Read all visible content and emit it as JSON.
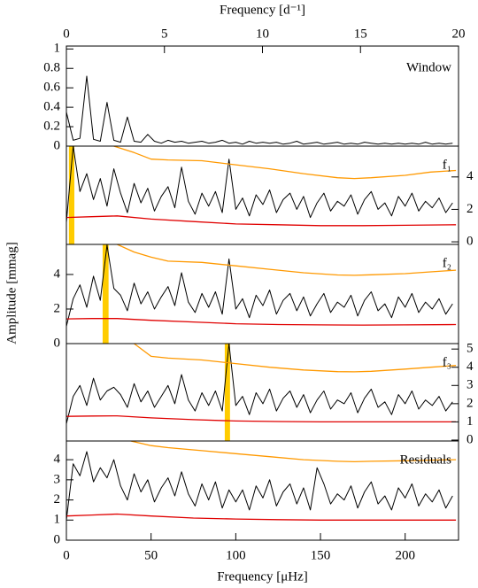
{
  "chart_data": [
    {
      "type": "line",
      "label": "Window",
      "x2label": "Frequency [d⁻¹]",
      "x2lim": [
        0,
        20
      ],
      "x2ticks": [
        0,
        5,
        10,
        15,
        20
      ],
      "xlim": [
        0,
        231.5
      ],
      "ylim": [
        0,
        1.03
      ],
      "yticks": [
        0,
        0.2,
        0.4,
        0.6,
        0.8,
        1
      ],
      "ytick_side": "left",
      "series": [
        {
          "color": "#000000",
          "x": [
            0,
            4,
            8,
            12,
            16,
            20,
            24,
            28,
            32,
            36,
            40,
            44,
            48,
            52,
            56,
            60,
            64,
            68,
            72,
            76,
            80,
            84,
            88,
            92,
            96,
            100,
            104,
            108,
            112,
            116,
            120,
            124,
            128,
            132,
            136,
            140,
            144,
            148,
            152,
            156,
            160,
            164,
            168,
            172,
            176,
            180,
            184,
            188,
            192,
            196,
            200,
            204,
            208,
            212,
            216,
            220,
            224,
            228
          ],
          "values": [
            0.35,
            0.06,
            0.08,
            0.72,
            0.07,
            0.05,
            0.45,
            0.06,
            0.04,
            0.3,
            0.05,
            0.04,
            0.12,
            0.05,
            0.03,
            0.06,
            0.04,
            0.05,
            0.03,
            0.04,
            0.05,
            0.03,
            0.04,
            0.06,
            0.03,
            0.04,
            0.02,
            0.05,
            0.03,
            0.04,
            0.03,
            0.04,
            0.02,
            0.03,
            0.05,
            0.02,
            0.03,
            0.04,
            0.02,
            0.03,
            0.04,
            0.02,
            0.03,
            0.02,
            0.04,
            0.03,
            0.02,
            0.03,
            0.02,
            0.03,
            0.02,
            0.03,
            0.02,
            0.04,
            0.02,
            0.03,
            0.02,
            0.03
          ]
        }
      ]
    },
    {
      "type": "line",
      "label": "f₁",
      "xlim": [
        0,
        231.5
      ],
      "ylim": [
        -0.16,
        5.9
      ],
      "yticks": [
        0,
        2,
        4
      ],
      "ytick_side": "right",
      "highlight": [
        1.5,
        4.7
      ],
      "highlight_color": "#ffcc00",
      "series": [
        {
          "color": "#000000",
          "x": [
            0,
            4,
            8,
            12,
            16,
            20,
            24,
            28,
            32,
            36,
            40,
            44,
            48,
            52,
            56,
            60,
            64,
            68,
            72,
            76,
            80,
            84,
            88,
            92,
            96,
            100,
            104,
            108,
            112,
            116,
            120,
            124,
            128,
            132,
            136,
            140,
            144,
            148,
            152,
            156,
            160,
            164,
            168,
            172,
            176,
            180,
            184,
            188,
            192,
            196,
            200,
            204,
            208,
            212,
            216,
            220,
            224,
            228
          ],
          "values": [
            1.2,
            5.9,
            3.1,
            4.2,
            2.6,
            3.9,
            2.2,
            4.5,
            3.0,
            1.8,
            3.6,
            2.4,
            3.3,
            1.9,
            2.8,
            3.4,
            2.1,
            4.6,
            2.5,
            1.7,
            3.0,
            2.2,
            3.1,
            1.8,
            5.1,
            2.0,
            2.7,
            1.6,
            2.9,
            2.3,
            3.2,
            1.8,
            2.6,
            3.0,
            2.0,
            2.8,
            1.5,
            2.4,
            3.0,
            1.9,
            2.5,
            2.2,
            2.9,
            1.7,
            2.6,
            3.1,
            2.0,
            2.4,
            1.6,
            2.8,
            2.2,
            3.0,
            1.9,
            2.5,
            2.1,
            2.7,
            1.8,
            2.4
          ]
        },
        {
          "color": "#ff9900",
          "x": [
            28,
            40,
            50,
            60,
            80,
            100,
            120,
            140,
            160,
            170,
            180,
            200,
            215,
            230
          ],
          "values": [
            5.9,
            5.5,
            5.1,
            5.05,
            5.0,
            4.75,
            4.5,
            4.2,
            3.95,
            3.9,
            3.95,
            4.1,
            4.3,
            4.4
          ]
        },
        {
          "color": "#e00000",
          "x": [
            0,
            15,
            30,
            50,
            75,
            100,
            125,
            150,
            175,
            200,
            230
          ],
          "values": [
            1.5,
            1.55,
            1.6,
            1.4,
            1.25,
            1.1,
            1.05,
            1.0,
            1.0,
            1.02,
            1.05
          ]
        }
      ]
    },
    {
      "type": "line",
      "label": "f₂",
      "xlim": [
        0,
        231.5
      ],
      "ylim": [
        0,
        5.74
      ],
      "yticks": [
        0,
        2,
        4
      ],
      "ytick_side": "left",
      "highlight": [
        21.4,
        24.9
      ],
      "highlight_color": "#ffcc00",
      "ylabel": "Amplitude [mmag]",
      "series": [
        {
          "color": "#000000",
          "x": [
            0,
            4,
            8,
            12,
            16,
            20,
            24,
            28,
            32,
            36,
            40,
            44,
            48,
            52,
            56,
            60,
            64,
            68,
            72,
            76,
            80,
            84,
            88,
            92,
            96,
            100,
            104,
            108,
            112,
            116,
            120,
            124,
            128,
            132,
            136,
            140,
            144,
            148,
            152,
            156,
            160,
            164,
            168,
            172,
            176,
            180,
            184,
            188,
            192,
            196,
            200,
            204,
            208,
            212,
            216,
            220,
            224,
            228
          ],
          "values": [
            1.0,
            2.6,
            3.4,
            2.1,
            3.9,
            2.5,
            5.7,
            3.2,
            2.8,
            1.9,
            3.5,
            2.3,
            3.0,
            2.0,
            2.7,
            3.3,
            2.2,
            4.1,
            2.4,
            1.8,
            2.9,
            2.1,
            3.0,
            1.7,
            4.9,
            2.0,
            2.6,
            1.5,
            2.8,
            2.2,
            3.1,
            1.7,
            2.5,
            2.9,
            1.9,
            2.7,
            1.6,
            2.3,
            2.9,
            1.8,
            2.4,
            2.1,
            2.8,
            1.6,
            2.5,
            3.0,
            1.9,
            2.3,
            1.5,
            2.7,
            2.1,
            2.9,
            1.8,
            2.4,
            2.0,
            2.6,
            1.7,
            2.3
          ]
        },
        {
          "color": "#ff9900",
          "x": [
            30,
            40,
            50,
            60,
            80,
            100,
            120,
            140,
            160,
            170,
            180,
            200,
            215,
            230
          ],
          "values": [
            5.74,
            5.3,
            5.0,
            4.77,
            4.7,
            4.5,
            4.3,
            4.1,
            3.97,
            3.95,
            3.98,
            4.05,
            4.15,
            4.25
          ]
        },
        {
          "color": "#e00000",
          "x": [
            0,
            15,
            30,
            50,
            75,
            100,
            125,
            150,
            175,
            200,
            230
          ],
          "values": [
            1.43,
            1.45,
            1.45,
            1.35,
            1.25,
            1.15,
            1.1,
            1.08,
            1.07,
            1.08,
            1.1
          ]
        }
      ]
    },
    {
      "type": "line",
      "label": "f₃",
      "xlim": [
        0,
        231.5
      ],
      "ylim": [
        -0.05,
        5.3
      ],
      "yticks": [
        0,
        1,
        2,
        3,
        4,
        5
      ],
      "ytick_side": "right",
      "highlight": [
        93.5,
        96.6
      ],
      "highlight_color": "#ffcc00",
      "series": [
        {
          "color": "#000000",
          "x": [
            0,
            4,
            8,
            12,
            16,
            20,
            24,
            28,
            32,
            36,
            40,
            44,
            48,
            52,
            56,
            60,
            64,
            68,
            72,
            76,
            80,
            84,
            88,
            92,
            96,
            100,
            104,
            108,
            112,
            116,
            120,
            124,
            128,
            132,
            136,
            140,
            144,
            148,
            152,
            156,
            160,
            164,
            168,
            172,
            176,
            180,
            184,
            188,
            192,
            196,
            200,
            204,
            208,
            212,
            216,
            220,
            224,
            228
          ],
          "values": [
            0.9,
            2.4,
            3.0,
            1.9,
            3.4,
            2.2,
            2.7,
            2.9,
            2.5,
            1.8,
            3.1,
            2.1,
            2.7,
            1.8,
            2.4,
            3.0,
            2.0,
            3.6,
            2.2,
            1.6,
            2.6,
            1.9,
            2.7,
            1.6,
            5.3,
            1.9,
            2.4,
            1.4,
            2.6,
            2.0,
            2.8,
            1.6,
            2.3,
            2.7,
            1.8,
            2.5,
            1.5,
            2.2,
            2.7,
            1.7,
            2.2,
            2.0,
            2.6,
            1.5,
            2.3,
            2.8,
            1.8,
            2.1,
            1.4,
            2.5,
            2.0,
            2.7,
            1.7,
            2.2,
            1.9,
            2.4,
            1.6,
            2.1
          ]
        },
        {
          "color": "#ff9900",
          "x": [
            40,
            50,
            60,
            80,
            100,
            120,
            140,
            160,
            170,
            180,
            200,
            215,
            230
          ],
          "values": [
            5.3,
            4.6,
            4.5,
            4.4,
            4.2,
            4.0,
            3.85,
            3.76,
            3.75,
            3.78,
            3.9,
            4.0,
            4.1
          ]
        },
        {
          "color": "#e00000",
          "x": [
            0,
            15,
            30,
            50,
            75,
            100,
            125,
            150,
            175,
            200,
            230
          ],
          "values": [
            1.3,
            1.32,
            1.33,
            1.22,
            1.12,
            1.05,
            1.02,
            1.0,
            1.0,
            1.0,
            1.0
          ]
        }
      ]
    },
    {
      "type": "line",
      "label": "Residuals",
      "xlabel": "Frequency [μHz]",
      "xlim": [
        0,
        231.5
      ],
      "xticks": [
        0,
        50,
        100,
        150,
        200
      ],
      "ylim": [
        0,
        4.93
      ],
      "yticks": [
        0,
        1,
        2,
        3,
        4
      ],
      "ytick_side": "left",
      "series": [
        {
          "color": "#000000",
          "x": [
            0,
            4,
            8,
            12,
            16,
            20,
            24,
            28,
            32,
            36,
            40,
            44,
            48,
            52,
            56,
            60,
            64,
            68,
            72,
            76,
            80,
            84,
            88,
            92,
            96,
            100,
            104,
            108,
            112,
            116,
            120,
            124,
            128,
            132,
            136,
            140,
            144,
            148,
            152,
            156,
            160,
            164,
            168,
            172,
            176,
            180,
            184,
            188,
            192,
            196,
            200,
            204,
            208,
            212,
            216,
            220,
            224,
            228
          ],
          "values": [
            1.0,
            3.8,
            3.2,
            4.4,
            2.9,
            3.6,
            3.1,
            4.0,
            2.7,
            2.0,
            3.3,
            2.4,
            3.0,
            1.9,
            2.6,
            3.1,
            2.2,
            3.4,
            2.3,
            1.7,
            2.8,
            2.0,
            2.9,
            1.6,
            2.5,
            1.9,
            2.5,
            1.5,
            2.7,
            2.1,
            3.0,
            1.7,
            2.4,
            2.8,
            1.8,
            2.6,
            1.5,
            3.6,
            2.8,
            1.8,
            2.3,
            2.0,
            2.7,
            1.6,
            2.4,
            2.9,
            1.8,
            2.2,
            1.5,
            2.6,
            2.1,
            2.8,
            1.7,
            2.3,
            1.9,
            2.5,
            1.6,
            2.2
          ]
        },
        {
          "color": "#ff9900",
          "x": [
            38,
            50,
            60,
            80,
            100,
            120,
            140,
            160,
            170,
            180,
            200,
            215,
            230
          ],
          "values": [
            4.93,
            4.7,
            4.6,
            4.45,
            4.3,
            4.15,
            4.0,
            3.92,
            3.9,
            3.92,
            3.95,
            3.98,
            4.0
          ]
        },
        {
          "color": "#e00000",
          "x": [
            0,
            15,
            30,
            50,
            75,
            100,
            125,
            150,
            175,
            200,
            230
          ],
          "values": [
            1.2,
            1.25,
            1.3,
            1.2,
            1.1,
            1.05,
            1.02,
            1.0,
            1.0,
            1.0,
            1.0
          ]
        }
      ]
    }
  ]
}
